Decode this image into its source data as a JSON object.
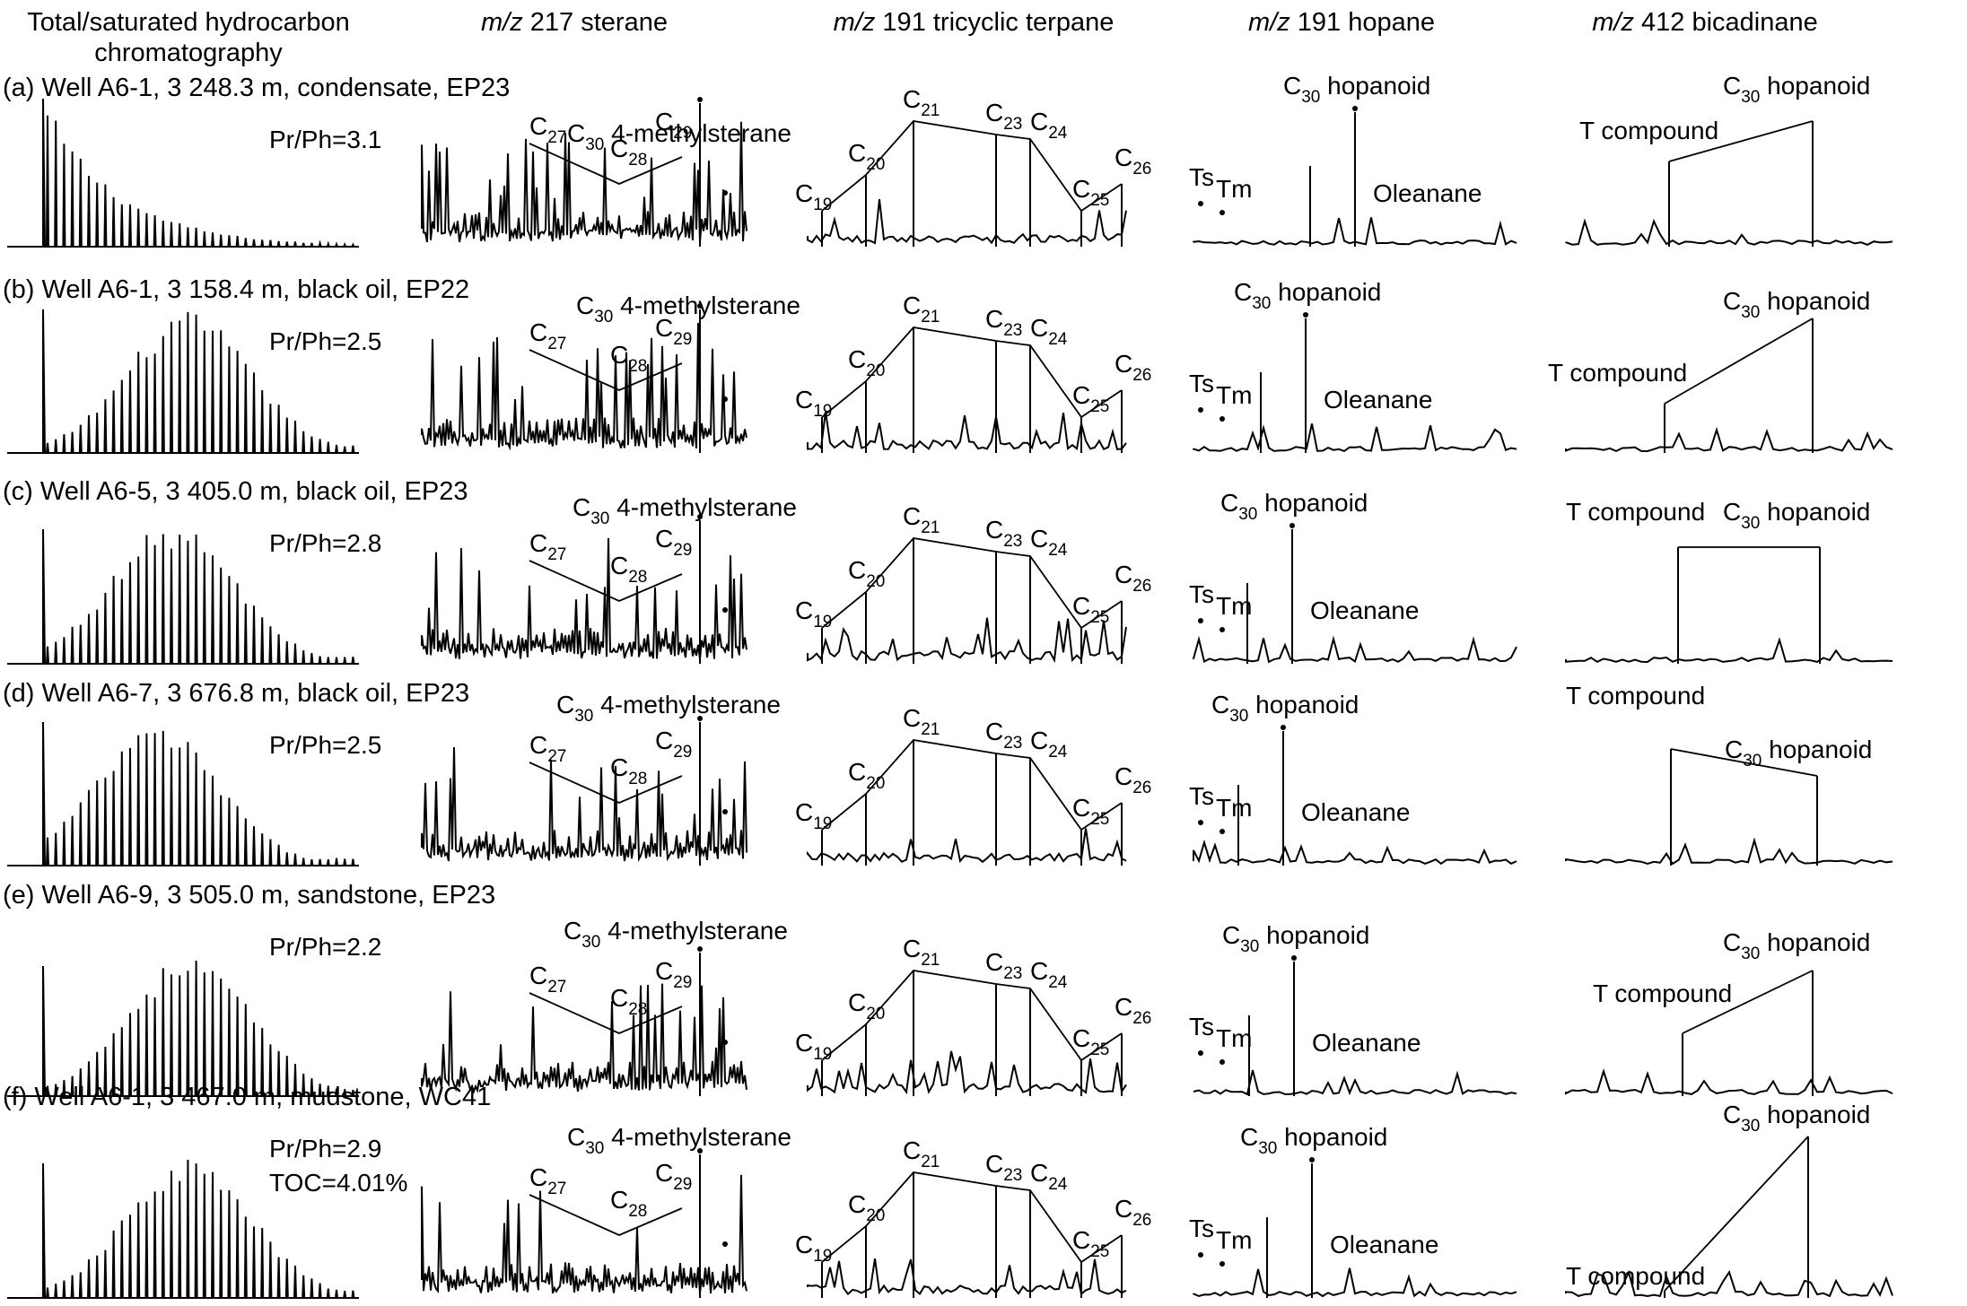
{
  "chart_data": {
    "type": "chromatogram-grid",
    "columns": [
      {
        "key": "tsh",
        "pre": "",
        "ital": "",
        "post": "Total/saturated hydrocarbon",
        "line2": "chromatography"
      },
      {
        "key": "ste",
        "pre": "",
        "ital": "m/z",
        "post": " 217 sterane",
        "line2": ""
      },
      {
        "key": "tri",
        "pre": "",
        "ital": "m/z",
        "post": " 191 tricyclic terpane",
        "line2": ""
      },
      {
        "key": "hop",
        "pre": "",
        "ital": "m/z",
        "post": " 191 hopane",
        "line2": ""
      },
      {
        "key": "bic",
        "pre": "",
        "ital": "m/z",
        "post": " 412 bicadinane",
        "line2": ""
      }
    ],
    "rows": [
      {
        "id": "a",
        "label": "(a) Well A6-1, 3 248.3 m, condensate, EP23",
        "prph": "Pr/Ph=3.1",
        "toc": ""
      },
      {
        "id": "b",
        "label": "(b) Well A6-1, 3 158.4 m, black oil, EP22",
        "prph": "Pr/Ph=2.5",
        "toc": ""
      },
      {
        "id": "c",
        "label": "(c) Well A6-5, 3 405.0 m, black oil, EP23",
        "prph": "Pr/Ph=2.8",
        "toc": ""
      },
      {
        "id": "d",
        "label": "(d) Well A6-7, 3 676.8 m, black oil, EP23",
        "prph": "Pr/Ph=2.5",
        "toc": ""
      },
      {
        "id": "e",
        "label": "(e) Well A6-9, 3 505.0 m, sandstone, EP23",
        "prph": "Pr/Ph=2.2",
        "toc": ""
      },
      {
        "id": "f",
        "label": "(f) Well A6-1, 3 467.0 m, mudstone, WC41",
        "prph": "Pr/Ph=2.9",
        "toc": "TOC=4.01%"
      }
    ],
    "peak_labels": {
      "C": "C",
      "sterane": {
        "methyl_sub": "30",
        "methyl_text": " 4-methylsterane",
        "c27": "27",
        "c28": "28",
        "c29": "29"
      },
      "tricyclic": {
        "c19": "19",
        "c20": "20",
        "c21": "21",
        "c23": "23",
        "c24": "24",
        "c25": "25",
        "c26": "26"
      },
      "hopane": {
        "hop_sub": "30",
        "hop_text": " hopanoid",
        "ts": "Ts",
        "tm": "Tm",
        "oleanane": "Oleanane"
      },
      "bicadinane": {
        "t_compound": "T compound",
        "hop_sub": "30",
        "hop_text": " hopanoid"
      }
    },
    "axes": "none",
    "grid": false,
    "legend": "none"
  }
}
